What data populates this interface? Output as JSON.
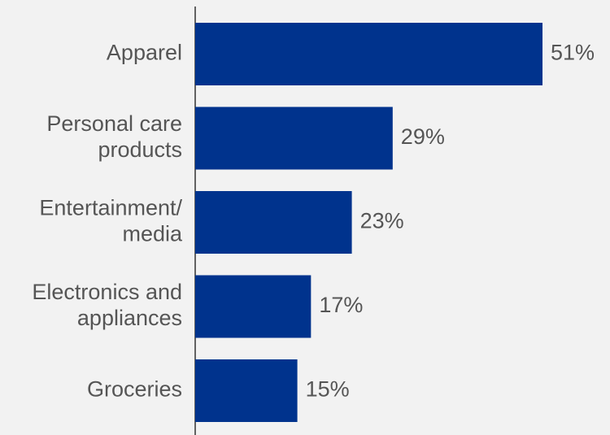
{
  "colors": {
    "background": "#f2f2f2",
    "bar": "#00338d",
    "axis": "#333333",
    "text": "#555555"
  },
  "chart_data": {
    "type": "bar",
    "orientation": "horizontal",
    "categories": [
      [
        "Apparel"
      ],
      [
        "Personal care",
        "products"
      ],
      [
        "Entertainment/",
        "media"
      ],
      [
        "Electronics and",
        "appliances"
      ],
      [
        "Groceries"
      ]
    ],
    "values": [
      51,
      29,
      23,
      17,
      15
    ],
    "value_labels": [
      "51%",
      "29%",
      "23%",
      "17%",
      "15%"
    ],
    "xlim": [
      0,
      60
    ],
    "grid": false,
    "legend": "none"
  }
}
